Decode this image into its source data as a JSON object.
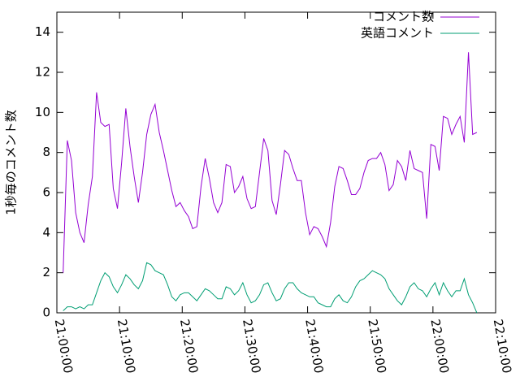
{
  "chart_data": {
    "type": "line",
    "y_label": "1秒毎のコメント数",
    "x": [
      "21:01:00",
      "21:01:40",
      "21:02:20",
      "21:03:00",
      "21:03:40",
      "21:04:20",
      "21:05:00",
      "21:05:40",
      "21:06:20",
      "21:07:00",
      "21:07:40",
      "21:08:20",
      "21:09:00",
      "21:09:40",
      "21:10:20",
      "21:11:00",
      "21:11:40",
      "21:12:20",
      "21:13:00",
      "21:13:40",
      "21:14:20",
      "21:15:00",
      "21:15:40",
      "21:16:20",
      "21:17:00",
      "21:17:40",
      "21:18:20",
      "21:19:00",
      "21:19:40",
      "21:20:20",
      "21:21:00",
      "21:21:40",
      "21:22:20",
      "21:23:00",
      "21:23:40",
      "21:24:20",
      "21:25:00",
      "21:25:40",
      "21:26:20",
      "21:27:00",
      "21:27:40",
      "21:28:20",
      "21:29:00",
      "21:29:40",
      "21:30:20",
      "21:31:00",
      "21:31:40",
      "21:32:20",
      "21:33:00",
      "21:33:40",
      "21:34:20",
      "21:35:00",
      "21:35:40",
      "21:36:20",
      "21:37:00",
      "21:37:40",
      "21:38:20",
      "21:39:00",
      "21:39:40",
      "21:40:20",
      "21:41:00",
      "21:41:40",
      "21:42:20",
      "21:43:00",
      "21:43:40",
      "21:44:20",
      "21:45:00",
      "21:45:40",
      "21:46:20",
      "21:47:00",
      "21:47:40",
      "21:48:20",
      "21:49:00",
      "21:49:40",
      "21:50:20",
      "21:51:00",
      "21:51:40",
      "21:52:20",
      "21:53:00",
      "21:53:40",
      "21:54:20",
      "21:55:00",
      "21:55:40",
      "21:56:20",
      "21:57:00",
      "21:57:40",
      "21:58:20",
      "21:59:00",
      "21:59:40",
      "22:00:20",
      "22:01:00",
      "22:01:40",
      "22:02:20",
      "22:03:00",
      "22:03:40",
      "22:04:20",
      "22:05:00",
      "22:05:40",
      "22:06:20",
      "22:07:00"
    ],
    "xlim": [
      "21:00:00",
      "22:10:00"
    ],
    "xticks": [
      "21:00:00",
      "21:10:00",
      "21:20:00",
      "21:30:00",
      "21:40:00",
      "21:50:00",
      "22:00:00",
      "22:10:00"
    ],
    "ylim": [
      0,
      15
    ],
    "yticks": [
      0,
      2,
      4,
      6,
      8,
      10,
      12,
      14
    ],
    "legend": "top-right",
    "series": [
      {
        "name": "コメント数",
        "color": "#9400d3",
        "values": [
          2.0,
          8.6,
          7.6,
          5.0,
          4.0,
          3.5,
          5.4,
          6.8,
          11.0,
          9.5,
          9.3,
          9.4,
          6.2,
          5.2,
          7.5,
          10.2,
          8.3,
          6.8,
          5.5,
          7.0,
          8.9,
          9.9,
          10.4,
          9.0,
          8.1,
          7.1,
          6.1,
          5.3,
          5.5,
          5.1,
          4.8,
          4.2,
          4.3,
          6.3,
          7.7,
          6.7,
          5.5,
          5.0,
          5.5,
          7.4,
          7.3,
          6.0,
          6.3,
          6.8,
          5.7,
          5.2,
          5.3,
          7.0,
          8.7,
          8.1,
          5.6,
          4.9,
          6.4,
          8.1,
          7.9,
          7.2,
          6.6,
          6.6,
          5.0,
          3.9,
          4.3,
          4.2,
          3.8,
          3.3,
          4.5,
          6.3,
          7.3,
          7.2,
          6.6,
          5.9,
          5.9,
          6.2,
          7.0,
          7.6,
          7.7,
          7.7,
          8.0,
          7.4,
          6.1,
          6.4,
          7.6,
          7.3,
          6.6,
          8.1,
          7.2,
          7.1,
          7.0,
          4.7,
          8.4,
          8.3,
          7.1,
          9.8,
          9.7,
          8.9,
          9.4,
          9.8,
          8.5,
          13.0,
          8.9,
          9.0
        ]
      },
      {
        "name": "英語コメント",
        "color": "#009e73",
        "values": [
          0.1,
          0.3,
          0.3,
          0.2,
          0.3,
          0.2,
          0.4,
          0.4,
          1.0,
          1.6,
          2.0,
          1.8,
          1.3,
          1.0,
          1.4,
          1.9,
          1.7,
          1.4,
          1.2,
          1.6,
          2.5,
          2.4,
          2.1,
          2.0,
          1.9,
          1.4,
          0.8,
          0.6,
          0.9,
          1.0,
          1.0,
          0.8,
          0.6,
          0.9,
          1.2,
          1.1,
          0.9,
          0.7,
          0.7,
          1.3,
          1.2,
          0.9,
          1.1,
          1.5,
          0.9,
          0.5,
          0.6,
          0.9,
          1.4,
          1.5,
          1.0,
          0.6,
          0.7,
          1.2,
          1.5,
          1.5,
          1.2,
          1.0,
          0.9,
          0.8,
          0.8,
          0.5,
          0.4,
          0.3,
          0.3,
          0.7,
          0.9,
          0.6,
          0.5,
          0.8,
          1.3,
          1.6,
          1.7,
          1.9,
          2.1,
          2.0,
          1.9,
          1.7,
          1.2,
          0.9,
          0.6,
          0.4,
          0.8,
          1.3,
          1.5,
          1.2,
          1.1,
          0.8,
          1.2,
          1.5,
          0.9,
          1.5,
          1.1,
          0.8,
          1.1,
          1.1,
          1.7,
          0.9,
          0.5,
          0.0
        ]
      }
    ]
  }
}
